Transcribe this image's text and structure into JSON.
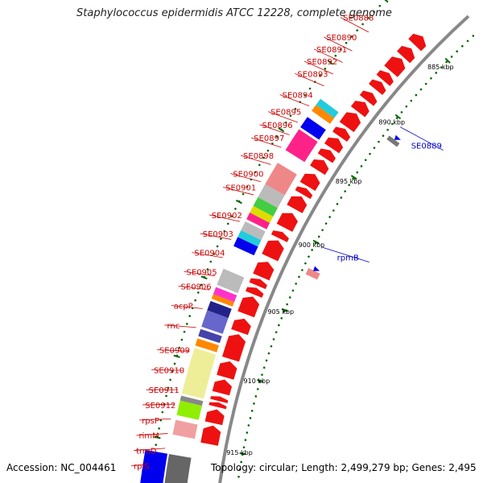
{
  "title": "Staphylococcus epidermidis ATCC 12228, complete genome",
  "accession": "Accession: NC_004461",
  "topology": "Topology: circular; Length: 2,499,279 bp; Genes: 2,495",
  "colors": {
    "gene": "#ee1111",
    "backbone": "#888888",
    "label_red": "#cc0000",
    "label_blue": "#0000cc",
    "tick": "#006600"
  },
  "kbp_ticks": [
    "885 kbp",
    "890 kbp",
    "895 kbp",
    "900 kbp",
    "905 kbp",
    "910 kbp",
    "915 kbp"
  ],
  "labels": {
    "inner": [
      "SE0889",
      "rpmB"
    ],
    "outer": [
      "SE0888",
      "SE0890",
      "SE0891",
      "SE0892",
      "SE0893",
      "SE0894",
      "SE0895",
      "SE0896",
      "SE0897",
      "SE0898",
      "SE0900",
      "SE0901",
      "SE0902",
      "SE0903",
      "SE0904",
      "SE0905",
      "SE0906",
      "acpP",
      "rnc",
      "SE0909",
      "SE0910",
      "SE0911",
      "SE0912",
      "rpsP",
      "rimM",
      "trmD",
      "rplS"
    ]
  }
}
